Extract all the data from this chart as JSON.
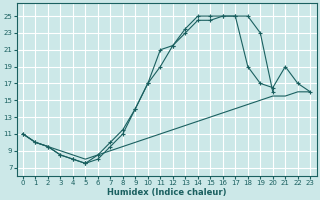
{
  "bg_color": "#cce8e8",
  "grid_color": "#ffffff",
  "line_color": "#1a6060",
  "marker_color": "#1a6060",
  "xlabel": "Humidex (Indice chaleur)",
  "xlim": [
    -0.5,
    23.5
  ],
  "ylim": [
    6,
    26.5
  ],
  "xticks": [
    0,
    1,
    2,
    3,
    4,
    5,
    6,
    7,
    8,
    9,
    10,
    11,
    12,
    13,
    14,
    15,
    16,
    17,
    18,
    19,
    20,
    21,
    22,
    23
  ],
  "yticks": [
    7,
    9,
    11,
    13,
    15,
    17,
    19,
    21,
    23,
    25
  ],
  "curve1_x": [
    0,
    1,
    2,
    3,
    4,
    5,
    6,
    7,
    8,
    9,
    10,
    11,
    12,
    13,
    14,
    15,
    16,
    17,
    18,
    19,
    20
  ],
  "curve1_y": [
    11,
    10,
    9.5,
    8.5,
    8,
    7.5,
    8.5,
    10,
    11.5,
    14,
    17,
    21,
    21.5,
    23,
    24.5,
    24.5,
    25,
    25,
    25,
    23,
    16
  ],
  "curve2_x": [
    0,
    1,
    2,
    3,
    4,
    5,
    5,
    6,
    7,
    8,
    9,
    10,
    11,
    12,
    13,
    14,
    15,
    16,
    17,
    18,
    19,
    20,
    21,
    22,
    23
  ],
  "curve2_y": [
    11,
    10,
    9.5,
    8.5,
    8,
    7.5,
    7.5,
    8,
    9.5,
    11,
    14,
    17,
    19,
    21.5,
    23.5,
    25,
    25,
    25,
    25,
    19,
    17,
    16.5,
    19,
    17,
    16
  ],
  "curve3_x": [
    0,
    1,
    2,
    3,
    4,
    5,
    6,
    7,
    8,
    9,
    10,
    11,
    12,
    13,
    14,
    15,
    16,
    17,
    18,
    19,
    20,
    21,
    22,
    23
  ],
  "curve3_y": [
    11,
    10,
    9.5,
    9,
    8.5,
    8,
    8.5,
    9,
    9.5,
    10,
    10.5,
    11,
    11.5,
    12,
    12.5,
    13,
    13.5,
    14,
    14.5,
    15,
    15.5,
    15.5,
    16,
    16
  ]
}
